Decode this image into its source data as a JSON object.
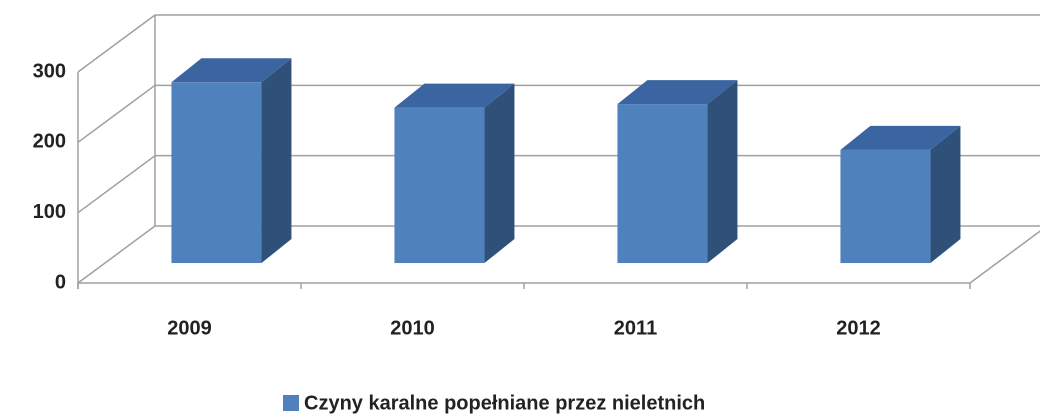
{
  "chart_data": {
    "type": "bar3d",
    "categories": [
      "2009",
      "2010",
      "2011",
      "2012"
    ],
    "series": [
      {
        "name": "Czyny karalne popełniane przez nieletnich",
        "color": "#4f81bd",
        "values": [
          257,
          221,
          226,
          161
        ]
      }
    ],
    "ylim": [
      0,
      300
    ],
    "yticks": [
      0,
      100,
      200,
      300
    ],
    "grid": true,
    "legend": "bottom"
  }
}
